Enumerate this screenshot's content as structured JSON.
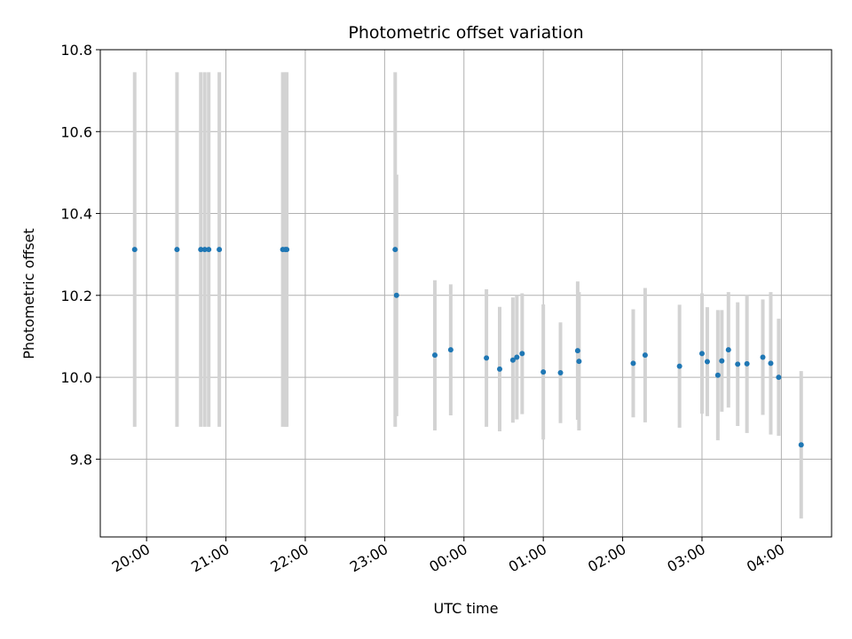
{
  "chart_data": {
    "type": "scatter",
    "title": "Photometric offset variation",
    "xlabel": "UTC time",
    "ylabel": "Photometric offset",
    "xlim": [
      "2024-01-01T19:25",
      "2024-01-02T04:38"
    ],
    "ylim": [
      9.61,
      10.8
    ],
    "grid": true,
    "x_ticks": [
      {
        "value": "2024-01-01T20:00",
        "label": "20:00"
      },
      {
        "value": "2024-01-01T21:00",
        "label": "21:00"
      },
      {
        "value": "2024-01-01T22:00",
        "label": "22:00"
      },
      {
        "value": "2024-01-01T23:00",
        "label": "23:00"
      },
      {
        "value": "2024-01-02T00:00",
        "label": "00:00"
      },
      {
        "value": "2024-01-02T01:00",
        "label": "01:00"
      },
      {
        "value": "2024-01-02T02:00",
        "label": "02:00"
      },
      {
        "value": "2024-01-02T03:00",
        "label": "03:00"
      },
      {
        "value": "2024-01-02T04:00",
        "label": "04:00"
      }
    ],
    "y_ticks": [
      {
        "value": 9.8,
        "label": "9.8"
      },
      {
        "value": 10.0,
        "label": "10.0"
      },
      {
        "value": 10.2,
        "label": "10.2"
      },
      {
        "value": 10.4,
        "label": "10.4"
      },
      {
        "value": 10.6,
        "label": "10.6"
      },
      {
        "value": 10.8,
        "label": "10.8"
      }
    ],
    "colors": {
      "points": "#1f77b4",
      "error_bars": "#d3d3d3",
      "grid": "#b0b0b0"
    },
    "points": [
      {
        "x": "2024-01-01T19:51",
        "y": 10.312,
        "low": 9.879,
        "high": 10.745
      },
      {
        "x": "2024-01-01T20:23",
        "y": 10.312,
        "low": 9.879,
        "high": 10.745
      },
      {
        "x": "2024-01-01T20:41",
        "y": 10.312,
        "low": 9.879,
        "high": 10.745
      },
      {
        "x": "2024-01-01T20:44",
        "y": 10.312,
        "low": 9.879,
        "high": 10.745
      },
      {
        "x": "2024-01-01T20:47",
        "y": 10.312,
        "low": 9.879,
        "high": 10.745
      },
      {
        "x": "2024-01-01T20:55",
        "y": 10.312,
        "low": 9.879,
        "high": 10.745
      },
      {
        "x": "2024-01-01T21:43",
        "y": 10.312,
        "low": 9.879,
        "high": 10.745
      },
      {
        "x": "2024-01-01T21:45",
        "y": 10.312,
        "low": 9.879,
        "high": 10.745
      },
      {
        "x": "2024-01-01T21:46",
        "y": 10.312,
        "low": 9.879,
        "high": 10.745
      },
      {
        "x": "2024-01-01T23:08",
        "y": 10.312,
        "low": 9.879,
        "high": 10.745
      },
      {
        "x": "2024-01-01T23:09",
        "y": 10.2,
        "low": 9.905,
        "high": 10.495
      },
      {
        "x": "2024-01-01T23:38",
        "y": 10.054,
        "low": 9.87,
        "high": 10.237
      },
      {
        "x": "2024-01-01T23:50",
        "y": 10.067,
        "low": 9.907,
        "high": 10.227
      },
      {
        "x": "2024-01-02T00:17",
        "y": 10.047,
        "low": 9.879,
        "high": 10.215
      },
      {
        "x": "2024-01-02T00:27",
        "y": 10.02,
        "low": 9.868,
        "high": 10.172
      },
      {
        "x": "2024-01-02T00:37",
        "y": 10.042,
        "low": 9.889,
        "high": 10.195
      },
      {
        "x": "2024-01-02T00:40",
        "y": 10.049,
        "low": 9.897,
        "high": 10.2
      },
      {
        "x": "2024-01-02T00:44",
        "y": 10.058,
        "low": 9.91,
        "high": 10.205
      },
      {
        "x": "2024-01-02T01:00",
        "y": 10.013,
        "low": 9.848,
        "high": 10.178
      },
      {
        "x": "2024-01-02T01:13",
        "y": 10.011,
        "low": 9.888,
        "high": 10.134
      },
      {
        "x": "2024-01-02T01:26",
        "y": 10.065,
        "low": 9.896,
        "high": 10.234
      },
      {
        "x": "2024-01-02T01:27",
        "y": 10.039,
        "low": 9.87,
        "high": 10.208
      },
      {
        "x": "2024-01-02T02:08",
        "y": 10.034,
        "low": 9.902,
        "high": 10.166
      },
      {
        "x": "2024-01-02T02:17",
        "y": 10.054,
        "low": 9.89,
        "high": 10.218
      },
      {
        "x": "2024-01-02T02:43",
        "y": 10.027,
        "low": 9.877,
        "high": 10.177
      },
      {
        "x": "2024-01-02T03:00",
        "y": 10.058,
        "low": 9.911,
        "high": 10.205
      },
      {
        "x": "2024-01-02T03:04",
        "y": 10.038,
        "low": 9.905,
        "high": 10.171
      },
      {
        "x": "2024-01-02T03:12",
        "y": 10.005,
        "low": 9.846,
        "high": 10.164
      },
      {
        "x": "2024-01-02T03:15",
        "y": 10.04,
        "low": 9.916,
        "high": 10.164
      },
      {
        "x": "2024-01-02T03:20",
        "y": 10.067,
        "low": 9.926,
        "high": 10.208
      },
      {
        "x": "2024-01-02T03:27",
        "y": 10.032,
        "low": 9.881,
        "high": 10.183
      },
      {
        "x": "2024-01-02T03:34",
        "y": 10.033,
        "low": 9.864,
        "high": 10.202
      },
      {
        "x": "2024-01-02T03:46",
        "y": 10.049,
        "low": 9.908,
        "high": 10.19
      },
      {
        "x": "2024-01-02T03:52",
        "y": 10.034,
        "low": 9.86,
        "high": 10.208
      },
      {
        "x": "2024-01-02T03:58",
        "y": 10.0,
        "low": 9.857,
        "high": 10.143
      },
      {
        "x": "2024-01-02T04:15",
        "y": 9.835,
        "low": 9.655,
        "high": 10.015
      }
    ]
  }
}
